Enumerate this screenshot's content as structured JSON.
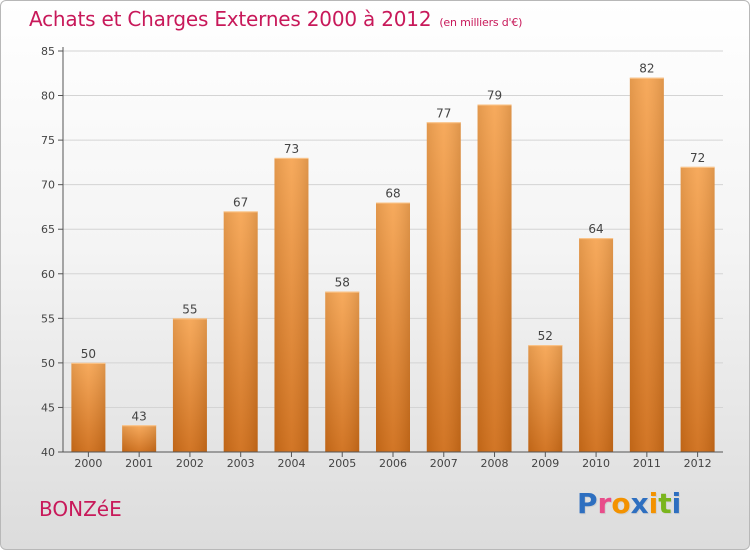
{
  "header": {
    "title": "Achats et Charges Externes 2000 à 2012",
    "subtitle": "(en milliers d'€)"
  },
  "footer": {
    "town": "BONZéE",
    "logo": "Proxiti",
    "logo_colors": [
      "#2e6fc0",
      "#e84c8a",
      "#f39200",
      "#2e6fc0",
      "#f39200",
      "#7ab51d",
      "#2e6fc0"
    ]
  },
  "colors": {
    "title": "#c8195a",
    "bar_light": "#f6a553",
    "bar_dark": "#cf6d18",
    "grid": "#d4d4d4",
    "axis": "#555555"
  },
  "chart_data": {
    "type": "bar",
    "categories": [
      "2000",
      "2001",
      "2002",
      "2003",
      "2004",
      "2005",
      "2006",
      "2007",
      "2008",
      "2009",
      "2010",
      "2011",
      "2012"
    ],
    "values": [
      50,
      43,
      55,
      67,
      73,
      58,
      68,
      77,
      79,
      52,
      64,
      82,
      72
    ],
    "title": "Achats et Charges Externes 2000 à 2012",
    "xlabel": "",
    "ylabel": "",
    "ylim": [
      40,
      85
    ],
    "yticks": [
      40,
      45,
      50,
      55,
      60,
      65,
      70,
      75,
      80,
      85
    ],
    "grid": true,
    "data_labels": true
  }
}
